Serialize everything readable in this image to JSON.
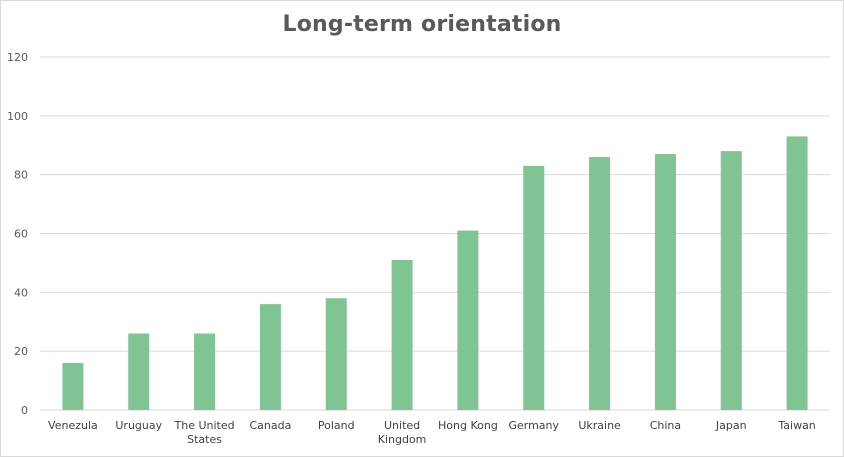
{
  "chart_data": {
    "type": "bar",
    "title": "Long-term orientation",
    "xlabel": "",
    "ylabel": "",
    "categories": [
      "Venezula",
      "Uruguay",
      "The United States",
      "Canada",
      "Poland",
      "United Kingdom",
      "Hong Kong",
      "Germany",
      "Ukraine",
      "China",
      "Japan",
      "Taiwan"
    ],
    "category_lines": [
      [
        "Venezula"
      ],
      [
        "Uruguay"
      ],
      [
        "The United",
        "States"
      ],
      [
        "Canada"
      ],
      [
        "Poland"
      ],
      [
        "United",
        "Kingdom"
      ],
      [
        "Hong Kong"
      ],
      [
        "Germany"
      ],
      [
        "Ukraine"
      ],
      [
        "China"
      ],
      [
        "Japan"
      ],
      [
        "Taiwan"
      ]
    ],
    "values": [
      16,
      26,
      26,
      36,
      38,
      51,
      61,
      83,
      86,
      87,
      88,
      93
    ],
    "ylim": [
      0,
      120
    ],
    "yticks": [
      0,
      20,
      40,
      60,
      80,
      100,
      120
    ],
    "grid": true,
    "legend": "none",
    "bar_color": "#7fc492",
    "grid_color": "#d9d9d9",
    "text_color": "#595959"
  }
}
